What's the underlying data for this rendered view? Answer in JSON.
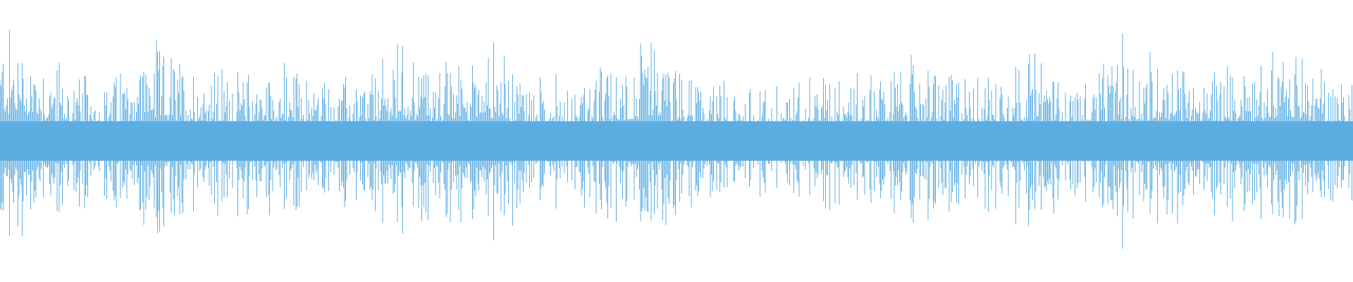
{
  "waveform": {
    "color": "#5dade2",
    "background": "#ffffff",
    "loudness_envelope": [
      0.85,
      0.55,
      0.45,
      0.75,
      0.6,
      0.55,
      0.6,
      0.5,
      0.45,
      0.75,
      0.6,
      0.8,
      0.5,
      0.45,
      0.6,
      0.75,
      0.5,
      0.4,
      0.4,
      0.6,
      0.55,
      0.6,
      0.55,
      0.55,
      0.7,
      0.5,
      0.6,
      0.7,
      0.55,
      0.65,
      0.7,
      0.5
    ]
  }
}
